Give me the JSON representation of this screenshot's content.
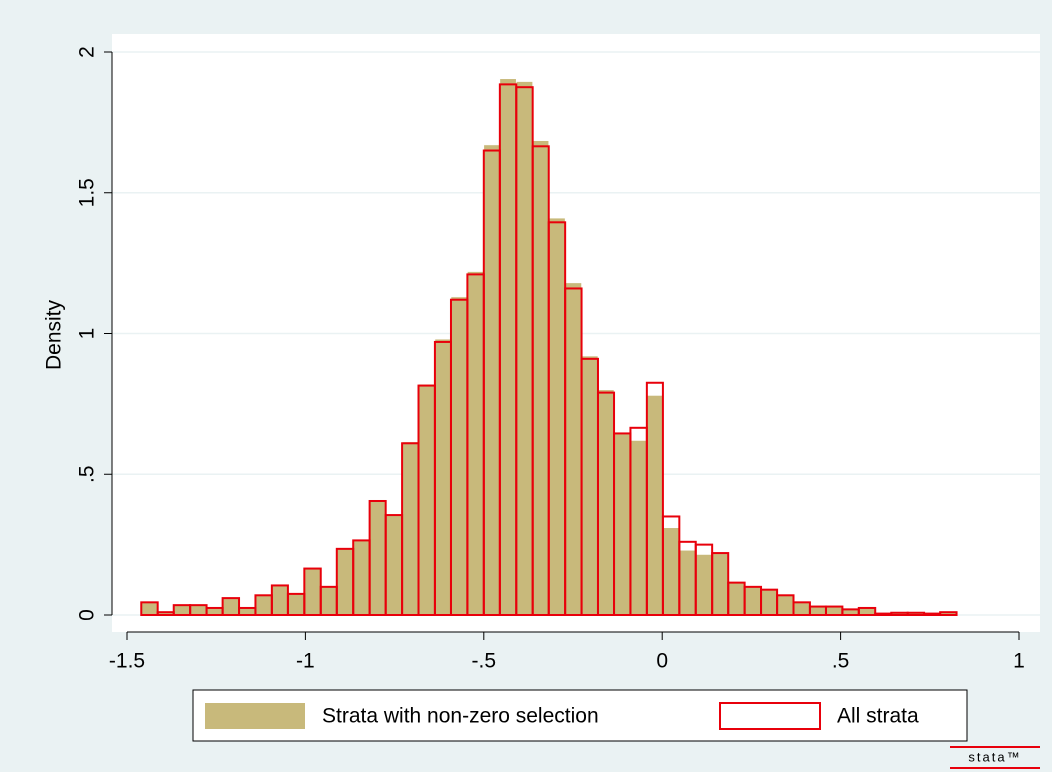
{
  "chart_data": {
    "type": "histogram",
    "ylabel": "Density",
    "bins": [
      -1.46,
      -1.414,
      -1.369,
      -1.323,
      -1.277,
      -1.232,
      -1.186,
      -1.14,
      -1.094,
      -1.049,
      -1.003,
      -0.957,
      -0.912,
      -0.866,
      -0.82,
      -0.775,
      -0.729,
      -0.683,
      -0.637,
      -0.592,
      -0.546,
      -0.5,
      -0.455,
      -0.409,
      -0.363,
      -0.318,
      -0.272,
      -0.226,
      -0.18,
      -0.135,
      -0.089,
      -0.043,
      0.002,
      0.048,
      0.094,
      0.14,
      0.185,
      0.231,
      0.277,
      0.322,
      0.368,
      0.414,
      0.459,
      0.505,
      0.551,
      0.597,
      0.642,
      0.688,
      0.734,
      0.779,
      0.825
    ],
    "series": [
      {
        "name": "Strata with non-zero selection",
        "color": "#c8b97b",
        "style": "filled",
        "values": [
          0.045,
          0.01,
          0.035,
          0.035,
          0.025,
          0.06,
          0.025,
          0.07,
          0.105,
          0.075,
          0.165,
          0.1,
          0.235,
          0.265,
          0.405,
          0.355,
          0.615,
          0.82,
          0.98,
          1.13,
          1.22,
          1.67,
          1.905,
          1.895,
          1.685,
          1.41,
          1.18,
          0.92,
          0.8,
          0.645,
          0.62,
          0.78,
          0.31,
          0.23,
          0.215,
          0.22,
          0.115,
          0.1,
          0.09,
          0.07,
          0.045,
          0.03,
          0.03,
          0.02,
          0.025,
          0.005,
          0.008,
          0.008,
          0.005,
          0.01
        ]
      },
      {
        "name": "All strata",
        "color": "#e8000b",
        "style": "outline",
        "values": [
          0.045,
          0.01,
          0.035,
          0.035,
          0.025,
          0.06,
          0.025,
          0.07,
          0.105,
          0.075,
          0.165,
          0.1,
          0.235,
          0.265,
          0.405,
          0.355,
          0.61,
          0.815,
          0.97,
          1.12,
          1.21,
          1.65,
          1.885,
          1.875,
          1.665,
          1.395,
          1.16,
          0.91,
          0.79,
          0.645,
          0.665,
          0.825,
          0.35,
          0.26,
          0.25,
          0.22,
          0.115,
          0.1,
          0.09,
          0.07,
          0.045,
          0.03,
          0.03,
          0.02,
          0.025,
          0.005,
          0.008,
          0.008,
          0.005,
          0.01
        ]
      }
    ],
    "xlim": [
      -1.5,
      1
    ],
    "xticks": [
      -1.5,
      -1,
      {
        "value": -0.5,
        "label": "-.5"
      },
      0,
      {
        "value": 0.5,
        "label": ".5"
      },
      1
    ],
    "ylim": [
      0,
      2
    ],
    "yticks": [
      0,
      {
        "value": 0.5,
        "label": ".5"
      },
      1,
      1.5,
      2
    ],
    "grid": true,
    "legend": "bottom",
    "logo_text": "stata™"
  }
}
